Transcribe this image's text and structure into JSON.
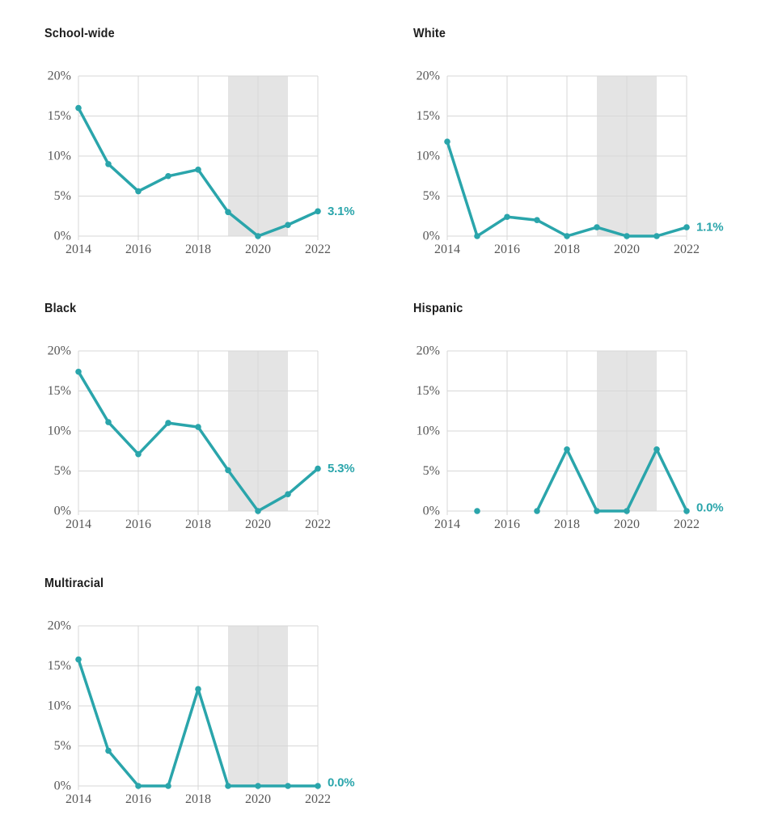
{
  "page": {
    "background": "#ffffff"
  },
  "chart_layout": {
    "type": "line",
    "layout": "small-multiples-2-col",
    "xlim": [
      2014,
      2022
    ],
    "ylim": [
      0,
      20
    ],
    "xtick_values": [
      2014,
      2016,
      2018,
      2020,
      2022
    ],
    "xtick_labels": [
      "2014",
      "2016",
      "2018",
      "2020",
      "2022"
    ],
    "ytick_values": [
      0,
      5,
      10,
      15,
      20
    ],
    "ytick_labels": [
      "0%",
      "5%",
      "10%",
      "15%",
      "20%"
    ],
    "shaded_band": {
      "from": 2019,
      "to": 2021
    },
    "grid": true,
    "legend": "none",
    "colors": {
      "line": "#2aa5ab",
      "marker": "#2aa5ab",
      "band": "#e4e4e4",
      "gridline": "#d7d7d7",
      "tick_text": "#575757",
      "title_text": "#1e1e1e",
      "end_label": "#2aa5ab",
      "background": "#ffffff"
    }
  },
  "chart_data": [
    {
      "type": "line",
      "title": "School-wide",
      "x": [
        2014,
        2015,
        2016,
        2017,
        2018,
        2019,
        2020,
        2021,
        2022
      ],
      "values": [
        16.0,
        9.0,
        5.6,
        7.5,
        8.3,
        3.0,
        0.0,
        1.4,
        3.1
      ],
      "end_label": "3.1%"
    },
    {
      "type": "line",
      "title": "White",
      "x": [
        2014,
        2015,
        2016,
        2017,
        2018,
        2019,
        2020,
        2021,
        2022
      ],
      "values": [
        11.8,
        0.0,
        2.4,
        2.0,
        0.0,
        1.1,
        0.0,
        0.0,
        1.1
      ],
      "end_label": "1.1%"
    },
    {
      "type": "line",
      "title": "Black",
      "x": [
        2014,
        2015,
        2016,
        2017,
        2018,
        2019,
        2020,
        2021,
        2022
      ],
      "values": [
        17.4,
        11.1,
        7.1,
        11.0,
        10.5,
        5.1,
        0.0,
        2.1,
        5.3
      ],
      "end_label": "5.3%"
    },
    {
      "type": "line",
      "title": "Hispanic",
      "x": [
        2014,
        2015,
        2016,
        2017,
        2018,
        2019,
        2020,
        2021,
        2022
      ],
      "values": [
        null,
        0.0,
        null,
        0.0,
        7.7,
        0.0,
        0.0,
        7.7,
        0.0
      ],
      "end_label": "0.0%"
    },
    {
      "type": "line",
      "title": "Multiracial",
      "x": [
        2014,
        2015,
        2016,
        2017,
        2018,
        2019,
        2020,
        2021,
        2022
      ],
      "values": [
        15.8,
        4.4,
        0.0,
        0.0,
        12.1,
        0.0,
        0.0,
        0.0,
        0.0
      ],
      "end_label": "0.0%"
    }
  ]
}
